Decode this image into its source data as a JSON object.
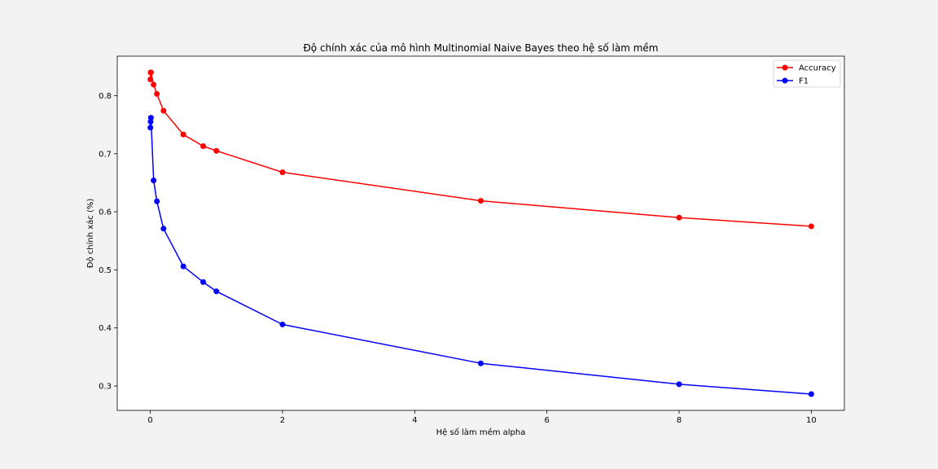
{
  "chart_data": {
    "type": "line",
    "title": "Độ chính xác của mô hình Multinomial Naive Bayes theo hệ số làm mềm",
    "xlabel": "Hệ số làm mềm alpha",
    "ylabel": "Độ chính xác (%)",
    "xlim": [
      -0.5,
      10.5
    ],
    "ylim": [
      0.258,
      0.868
    ],
    "xticks": [
      0,
      2,
      4,
      6,
      8,
      10
    ],
    "yticks": [
      0.3,
      0.4,
      0.5,
      0.6,
      0.7,
      0.8
    ],
    "x": [
      0.001,
      0.005,
      0.01,
      0.05,
      0.1,
      0.2,
      0.5,
      0.8,
      1,
      2,
      5,
      8,
      10
    ],
    "series": [
      {
        "name": "Accuracy",
        "color": "#ff0000",
        "values": [
          0.828,
          0.84,
          0.84,
          0.819,
          0.803,
          0.774,
          0.733,
          0.713,
          0.705,
          0.668,
          0.619,
          0.59,
          0.575
        ]
      },
      {
        "name": "F1",
        "color": "#0000ff",
        "values": [
          0.745,
          0.755,
          0.762,
          0.654,
          0.618,
          0.571,
          0.506,
          0.479,
          0.463,
          0.406,
          0.339,
          0.303,
          0.286
        ]
      }
    ],
    "legend_position": "top-right",
    "grid": false
  }
}
